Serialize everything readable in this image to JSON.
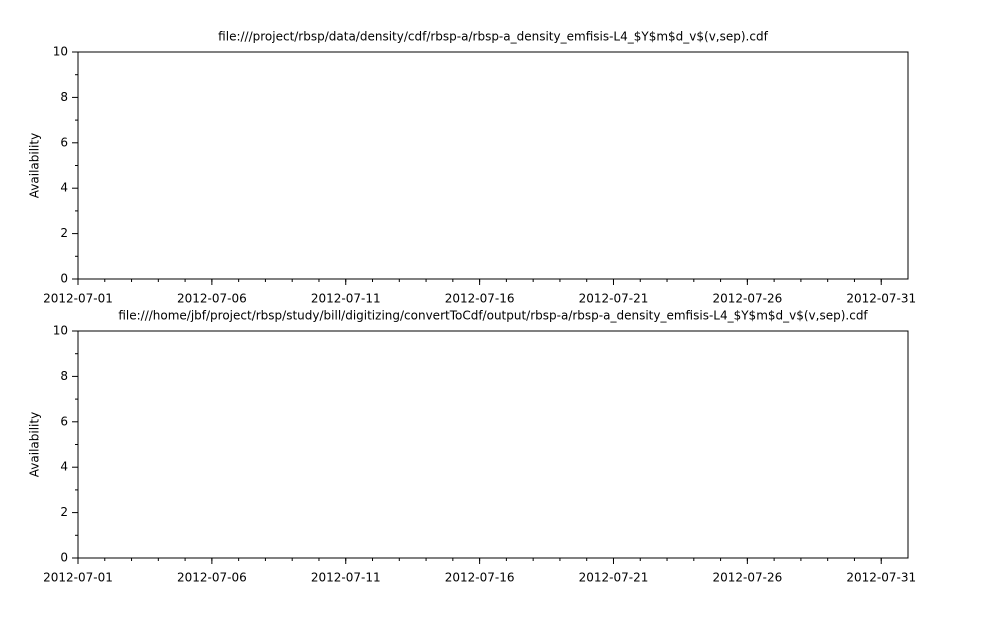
{
  "chart_data": [
    {
      "type": "line",
      "title": "file:///project/rbsp/data/density/cdf/rbsp-a/rbsp-a_density_emfisis-L4_$Y$m$d_v$(v,sep).cdf",
      "ylabel": "Availability",
      "xlim": [
        "2012-07-01",
        "2012-08-01"
      ],
      "xticks": [
        "2012-07-01",
        "2012-07-06",
        "2012-07-11",
        "2012-07-16",
        "2012-07-21",
        "2012-07-26",
        "2012-07-31"
      ],
      "ylim": [
        0,
        10
      ],
      "yticks": [
        0,
        2,
        4,
        6,
        8,
        10
      ],
      "grid": false
    },
    {
      "type": "line",
      "title": "file:///home/jbf/project/rbsp/study/bill/digitizing/convertToCdf/output/rbsp-a/rbsp-a_density_emfisis-L4_$Y$m$d_v$(v,sep).cdf",
      "ylabel": "Availability",
      "xlim": [
        "2012-07-01",
        "2012-08-01"
      ],
      "xticks": [
        "2012-07-01",
        "2012-07-06",
        "2012-07-11",
        "2012-07-16",
        "2012-07-21",
        "2012-07-26",
        "2012-07-31"
      ],
      "ylim": [
        0,
        10
      ],
      "yticks": [
        0,
        2,
        4,
        6,
        8,
        10
      ],
      "grid": false
    }
  ]
}
